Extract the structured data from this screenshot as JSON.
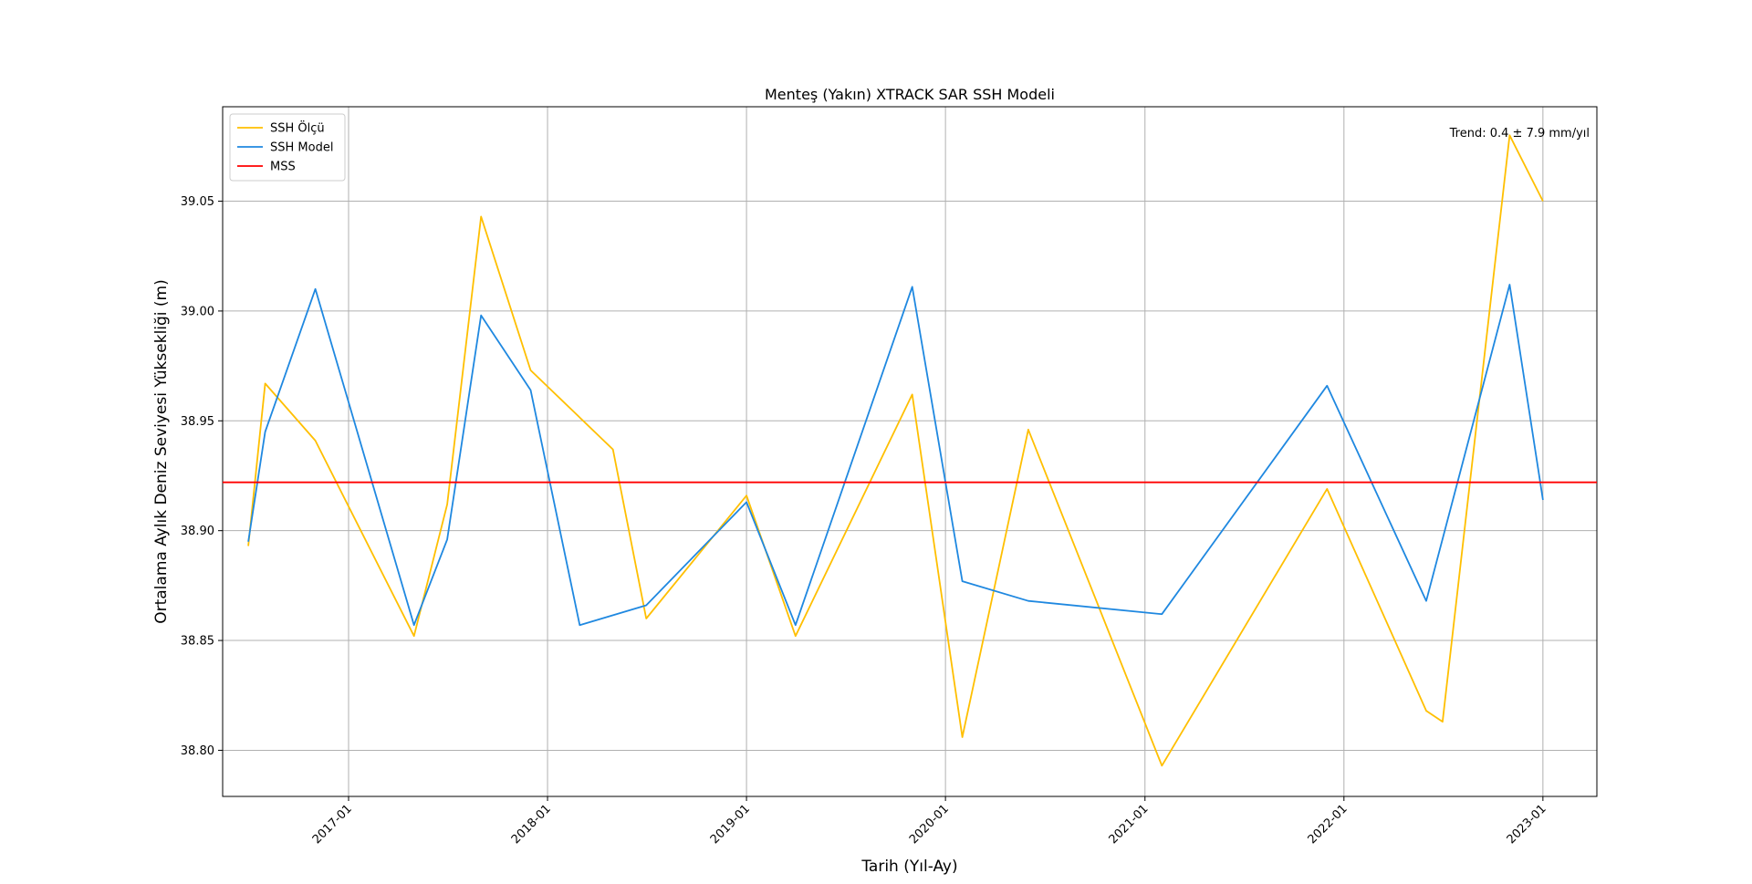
{
  "chart_data": {
    "type": "line",
    "title": "Menteş (Yakın) XTRACK SAR SSH Modeli",
    "xlabel": "Tarih (Yıl-Ay)",
    "ylabel": "Ortalama Aylık Deniz Seviyesi Yüksekliği (m)",
    "x_range": [
      "2016-05-15",
      "2023-04-10"
    ],
    "ylim": [
      38.779,
      39.093
    ],
    "x_ticks": [
      "2017-01",
      "2018-01",
      "2019-01",
      "2020-01",
      "2021-01",
      "2022-01",
      "2023-01"
    ],
    "y_ticks": [
      "38.80",
      "38.85",
      "38.90",
      "38.95",
      "39.00",
      "39.05"
    ],
    "grid": true,
    "legend_position": "top-left",
    "annotation": "Trend: 0.4 ± 7.9 mm/yıl",
    "series": [
      {
        "name": "SSH Ölçü",
        "color": "#FFBF00",
        "points": [
          {
            "x": "2016-07-01",
            "y": 38.893
          },
          {
            "x": "2016-08-01",
            "y": 38.967
          },
          {
            "x": "2016-11-01",
            "y": 38.941
          },
          {
            "x": "2017-05-01",
            "y": 38.852
          },
          {
            "x": "2017-07-01",
            "y": 38.912
          },
          {
            "x": "2017-09-01",
            "y": 39.043
          },
          {
            "x": "2017-12-01",
            "y": 38.973
          },
          {
            "x": "2018-05-01",
            "y": 38.937
          },
          {
            "x": "2018-07-01",
            "y": 38.86
          },
          {
            "x": "2019-01-01",
            "y": 38.916
          },
          {
            "x": "2019-04-01",
            "y": 38.852
          },
          {
            "x": "2019-11-01",
            "y": 38.962
          },
          {
            "x": "2020-02-01",
            "y": 38.806
          },
          {
            "x": "2020-06-01",
            "y": 38.946
          },
          {
            "x": "2021-02-01",
            "y": 38.793
          },
          {
            "x": "2021-12-01",
            "y": 38.919
          },
          {
            "x": "2022-06-01",
            "y": 38.818
          },
          {
            "x": "2022-07-01",
            "y": 38.813
          },
          {
            "x": "2022-11-01",
            "y": 39.08
          },
          {
            "x": "2023-01-01",
            "y": 39.05
          }
        ]
      },
      {
        "name": "SSH Model",
        "color": "#1F88E0",
        "points": [
          {
            "x": "2016-07-01",
            "y": 38.895
          },
          {
            "x": "2016-08-01",
            "y": 38.945
          },
          {
            "x": "2016-11-01",
            "y": 39.01
          },
          {
            "x": "2017-05-01",
            "y": 38.857
          },
          {
            "x": "2017-07-01",
            "y": 38.896
          },
          {
            "x": "2017-09-01",
            "y": 38.998
          },
          {
            "x": "2017-12-01",
            "y": 38.964
          },
          {
            "x": "2018-03-01",
            "y": 38.857
          },
          {
            "x": "2018-07-01",
            "y": 38.866
          },
          {
            "x": "2019-01-01",
            "y": 38.913
          },
          {
            "x": "2019-04-01",
            "y": 38.857
          },
          {
            "x": "2019-11-01",
            "y": 39.011
          },
          {
            "x": "2020-02-01",
            "y": 38.877
          },
          {
            "x": "2020-06-01",
            "y": 38.868
          },
          {
            "x": "2021-02-01",
            "y": 38.862
          },
          {
            "x": "2021-12-01",
            "y": 38.966
          },
          {
            "x": "2022-06-01",
            "y": 38.868
          },
          {
            "x": "2022-11-01",
            "y": 39.012
          },
          {
            "x": "2023-01-01",
            "y": 38.914
          }
        ]
      },
      {
        "name": "MSS",
        "color": "#FF0000",
        "constant": 38.922
      }
    ]
  }
}
